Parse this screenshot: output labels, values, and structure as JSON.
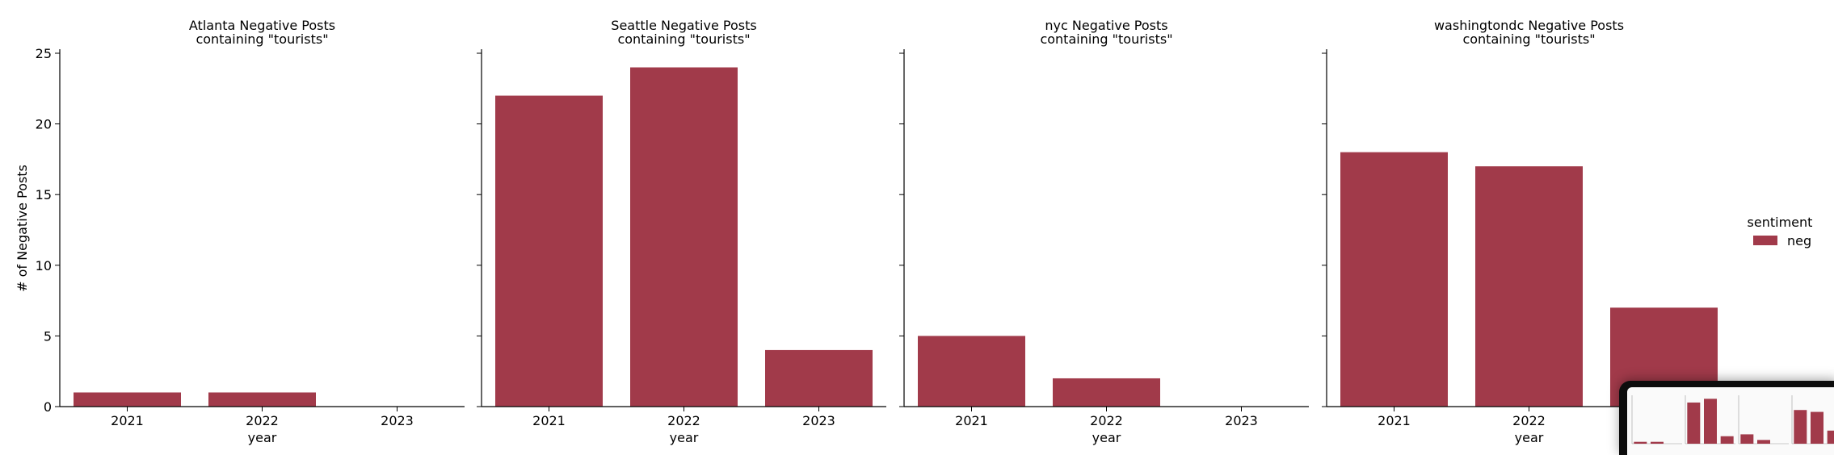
{
  "chart_data": {
    "type": "bar",
    "ylabel": "# of Negative Posts",
    "xlabel": "year",
    "ylim": [
      0,
      25
    ],
    "yticks": [
      0,
      5,
      10,
      15,
      20,
      25
    ],
    "categories": [
      "2021",
      "2022",
      "2023"
    ],
    "bar_color": "#a13a4a",
    "legend": {
      "title": "sentiment",
      "entries": [
        "neg"
      ],
      "placement": "right"
    },
    "panels": [
      {
        "title_line1": "Atlanta Negative Posts",
        "title_line2": "containing \"tourists\"",
        "values": [
          1,
          1,
          0
        ]
      },
      {
        "title_line1": "Seattle Negative Posts",
        "title_line2": "containing \"tourists\"",
        "values": [
          22,
          24,
          4
        ]
      },
      {
        "title_line1": "nyc Negative Posts",
        "title_line2": "containing \"tourists\"",
        "values": [
          5,
          2,
          0
        ]
      },
      {
        "title_line1": "washingtondc Negative Posts",
        "title_line2": "containing \"tourists\"",
        "values": [
          18,
          17,
          7
        ]
      }
    ]
  }
}
